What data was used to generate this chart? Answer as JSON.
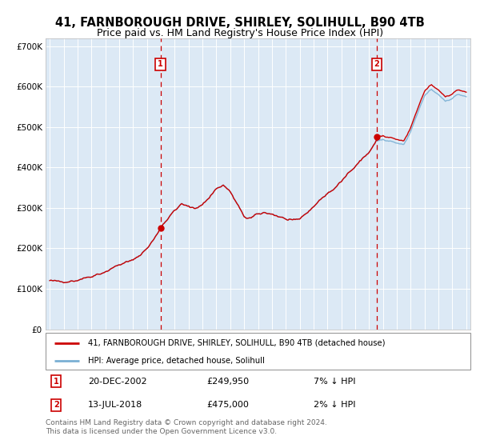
{
  "title": "41, FARNBOROUGH DRIVE, SHIRLEY, SOLIHULL, B90 4TB",
  "subtitle": "Price paid vs. HM Land Registry's House Price Index (HPI)",
  "title_fontsize": 10.5,
  "subtitle_fontsize": 9,
  "ylim": [
    0,
    720000
  ],
  "yticks": [
    0,
    100000,
    200000,
    300000,
    400000,
    500000,
    600000,
    700000
  ],
  "ytick_labels": [
    "£0",
    "£100K",
    "£200K",
    "£300K",
    "£400K",
    "£500K",
    "£600K",
    "£700K"
  ],
  "background_color": "#ffffff",
  "plot_bg_color": "#dce9f5",
  "grid_color": "#ffffff",
  "sale1_date": 2002.97,
  "sale1_price": 249950,
  "sale1_label": "1",
  "sale2_date": 2018.54,
  "sale2_price": 475000,
  "sale2_label": "2",
  "red_line_color": "#cc0000",
  "blue_line_color": "#7ab0d4",
  "vline_color": "#cc0000",
  "annotation_box_color": "#cc0000",
  "legend_label_red": "41, FARNBOROUGH DRIVE, SHIRLEY, SOLIHULL, B90 4TB (detached house)",
  "legend_label_blue": "HPI: Average price, detached house, Solihull",
  "note1_label": "1",
  "note1_date": "20-DEC-2002",
  "note1_price": "£249,950",
  "note1_hpi": "7% ↓ HPI",
  "note2_label": "2",
  "note2_date": "13-JUL-2018",
  "note2_price": "£475,000",
  "note2_hpi": "2% ↓ HPI",
  "footer": "Contains HM Land Registry data © Crown copyright and database right 2024.\nThis data is licensed under the Open Government Licence v3.0."
}
